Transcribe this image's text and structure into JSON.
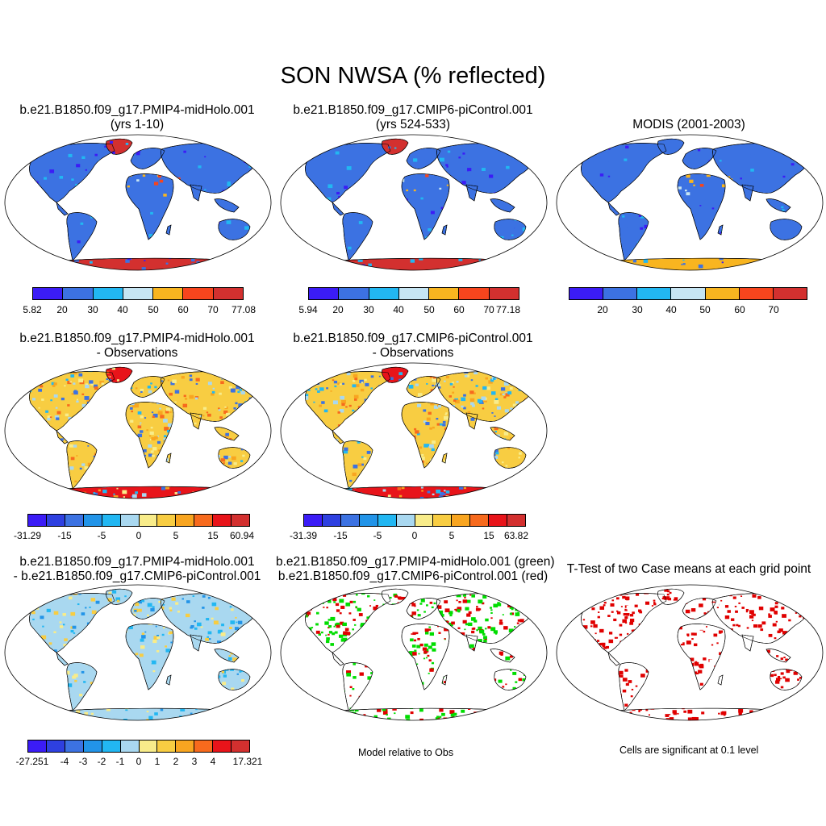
{
  "title": "SON NWSA (% reflected)",
  "colors": {
    "abs": [
      "#3b1cf6",
      "#3c72e2",
      "#22b7f2",
      "#c6e5f3",
      "#f8b520",
      "#f7451d",
      "#d3302f"
    ],
    "diff": [
      "#3b1cf6",
      "#2e40e0",
      "#3c72e2",
      "#2294e8",
      "#22b7f2",
      "#a9d8f0",
      "#f8ec8a",
      "#f8cd42",
      "#f8a520",
      "#f76a1d",
      "#e8141a",
      "#d3302f"
    ],
    "green": "#00dd00",
    "red": "#e00000"
  },
  "panels": [
    {
      "id": "p1",
      "title_line1": "b.e21.B1850.f09_g17.PMIP4-midHolo.001",
      "title_line2": "(yrs 1-10)",
      "colorbar_labels": [
        "5.82",
        "20",
        "30",
        "40",
        "50",
        "60",
        "70",
        "77.08"
      ]
    },
    {
      "id": "p2",
      "title_line1": "b.e21.B1850.f09_g17.CMIP6-piControl.001",
      "title_line2": "(yrs 524-533)",
      "colorbar_labels": [
        "5.94",
        "20",
        "30",
        "40",
        "50",
        "60",
        "70",
        "77.18"
      ]
    },
    {
      "id": "p3",
      "title_line1": "MODIS (2001-2003)",
      "colorbar_labels": [
        "20",
        "30",
        "40",
        "50",
        "60",
        "70"
      ]
    },
    {
      "id": "p4",
      "title_line1": "b.e21.B1850.f09_g17.PMIP4-midHolo.001",
      "title_line2": "- Observations",
      "colorbar_labels": [
        "-31.29",
        "-15",
        "-5",
        "0",
        "5",
        "15",
        "60.94"
      ]
    },
    {
      "id": "p5",
      "title_line1": "b.e21.B1850.f09_g17.CMIP6-piControl.001",
      "title_line2": "- Observations",
      "colorbar_labels": [
        "-31.39",
        "-15",
        "-5",
        "0",
        "5",
        "15",
        "63.82"
      ]
    },
    {
      "id": "p6",
      "title_line1": "b.e21.B1850.f09_g17.PMIP4-midHolo.001",
      "title_line2": "- b.e21.B1850.f09_g17.CMIP6-piControl.001",
      "colorbar_labels": [
        "-27.251",
        "-4",
        "-3",
        "-2",
        "-1",
        "0",
        "1",
        "2",
        "3",
        "4",
        "17.321"
      ]
    },
    {
      "id": "p7",
      "title_line1": "b.e21.B1850.f09_g17.PMIP4-midHolo.001 (green)",
      "title_line2": "b.e21.B1850.f09_g17.CMIP6-piControl.001 (red)",
      "note": "Model relative to Obs"
    },
    {
      "id": "p8",
      "title_line1": "T-Test of two Case means at each grid point",
      "note": "Cells are significant at 0.1 level"
    }
  ]
}
